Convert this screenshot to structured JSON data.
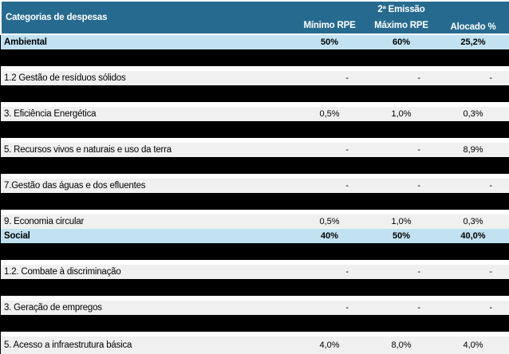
{
  "table": {
    "title_column": "Categorias de despesas",
    "group_header": "2ª Emissão",
    "columns": [
      "Mínimo RPE",
      "Máximo RPE",
      "Alocado %"
    ],
    "rows": [
      {
        "label": "Ambiental",
        "min": "50%",
        "max": "60%",
        "alloc": "25,2%"
      },
      {
        "label": "1.2 Gestão de resíduos sólidos",
        "min": "-",
        "max": "-",
        "alloc": "-"
      },
      {
        "label": "3. Eficiência Energética",
        "min": "0,5%",
        "max": "1,0%",
        "alloc": "0,3%"
      },
      {
        "label": "5. Recursos vivos e naturais e uso da terra",
        "min": "-",
        "max": "-",
        "alloc": "8,9%"
      },
      {
        "label": "7.Gestão das águas e dos efluentes",
        "min": "-",
        "max": "-",
        "alloc": "-"
      },
      {
        "label": "9. Economia circular",
        "min": "0,5%",
        "max": "1,0%",
        "alloc": "0,3%"
      },
      {
        "label": "Social",
        "min": "40%",
        "max": "50%",
        "alloc": "40,0%"
      },
      {
        "label": "1.2. Combate à discriminação",
        "min": "-",
        "max": "-",
        "alloc": "-"
      },
      {
        "label": "3. Geração de empregos",
        "min": "-",
        "max": "-",
        "alloc": "-"
      },
      {
        "label": "5. Acesso a infraestrutura básica",
        "min": "4,0%",
        "max": "8,0%",
        "alloc": "4,0%"
      }
    ],
    "colors": {
      "header_bg": "#266B8F",
      "header_text": "#FFFFFF",
      "section_row_bg": "#C2E2F2",
      "data_row_bg": "#F0F0F0",
      "separator_band": "#000000"
    }
  }
}
